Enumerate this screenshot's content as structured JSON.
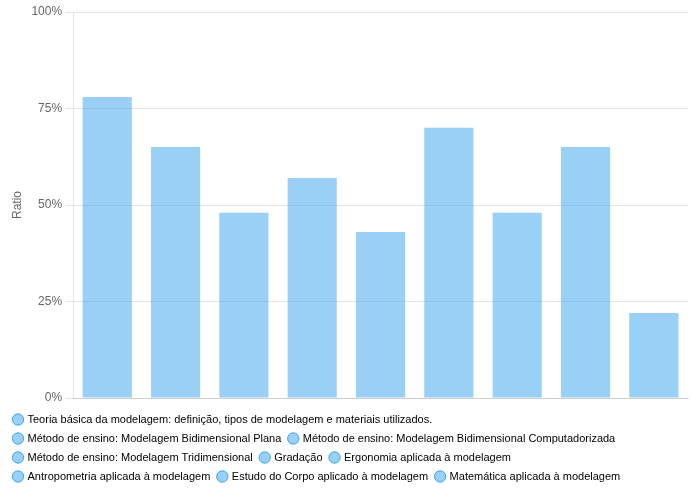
{
  "chart_data": {
    "type": "bar",
    "ylabel": "Ratio",
    "categories": [
      "Teoria básica da modelagem: definição, tipos de modelagem e materiais utilizados.",
      "Método de ensino: Modelagem Bidimensional Plana",
      "Método de ensino: Modelagem Bidimensional Computadorizada",
      "Método de ensino: Modelagem Tridimensional",
      "Gradação",
      "Ergonomia aplicada à modelagem",
      "Antropometria aplicada à modelagem",
      "Estudo do Corpo aplicado à modelagem",
      "Matemática aplicada à modelagem"
    ],
    "values": [
      0.78,
      0.65,
      0.48,
      0.57,
      0.43,
      0.7,
      0.48,
      0.65,
      0.22
    ],
    "ylim": [
      0,
      1.0
    ],
    "yticks": [
      {
        "value": 0,
        "label": "0%"
      },
      {
        "value": 0.25,
        "label": "25%"
      },
      {
        "value": 0.5,
        "label": "50%"
      },
      {
        "value": 0.75,
        "label": "75%"
      },
      {
        "value": 1.0,
        "label": "100%"
      }
    ],
    "grid": true,
    "tick_labels": "y",
    "legend": "bottom"
  }
}
